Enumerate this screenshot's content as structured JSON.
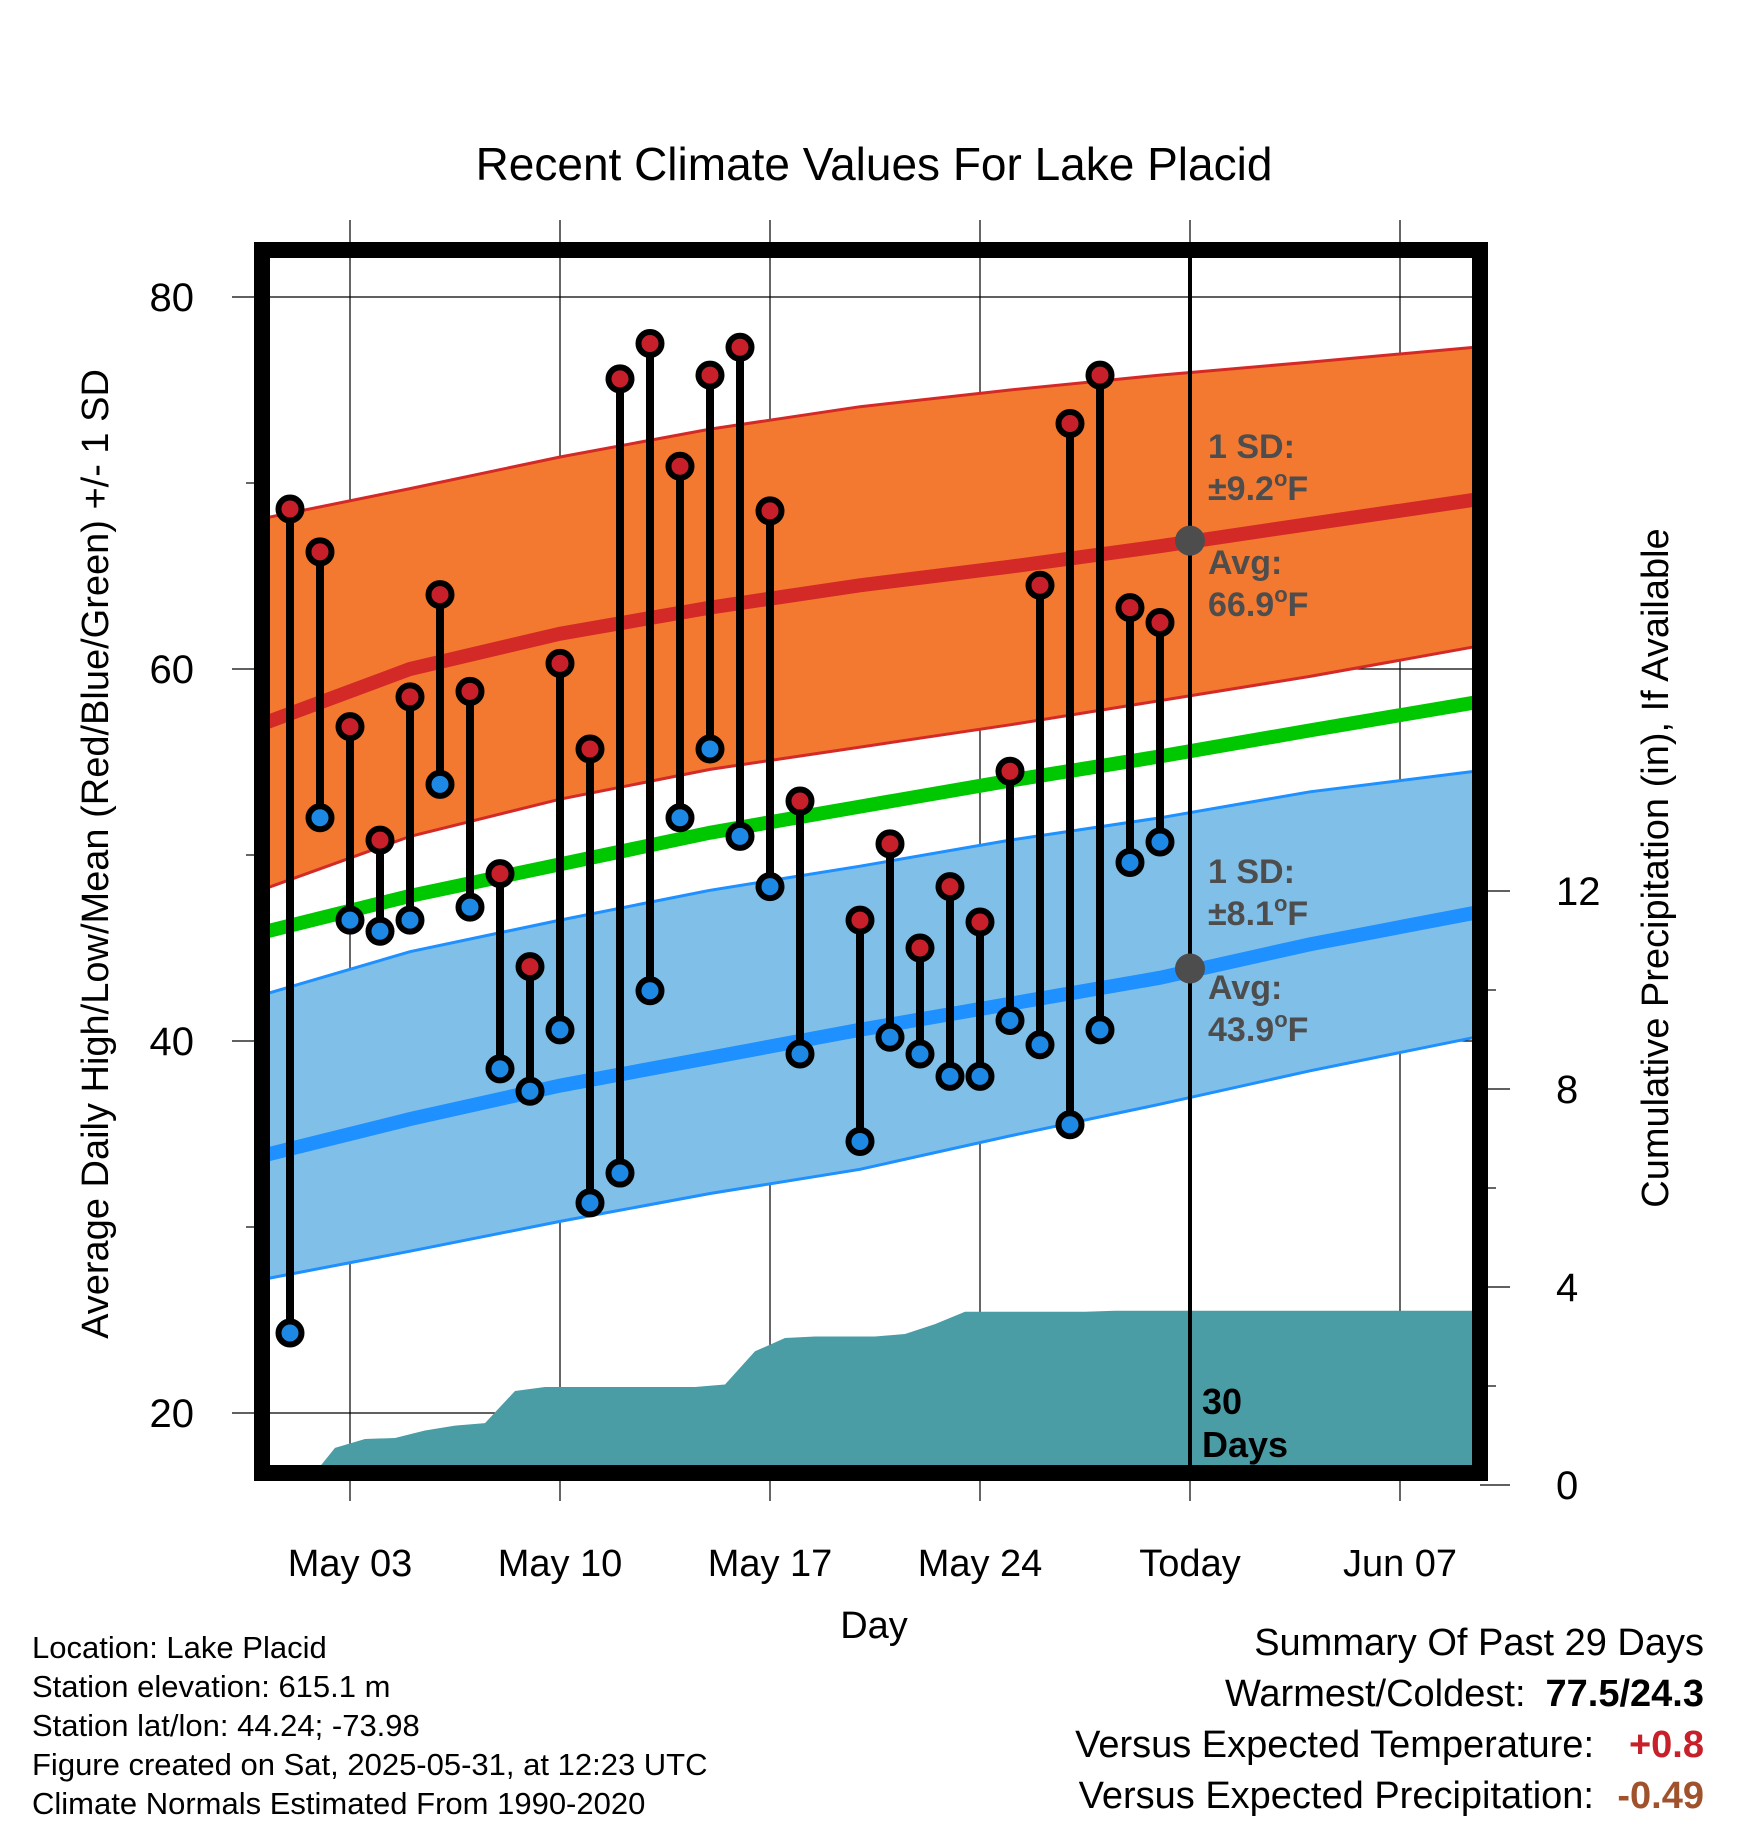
{
  "chart_data": {
    "type": "line",
    "title": "Recent Climate Values For Lake Placid",
    "xlabel": "Day",
    "ylabel_left": "Average Daily High/Low/Mean (Red/Blue/Green) +/- 1 SD",
    "ylabel_right": "Cumulative Precipitation (in), If Available",
    "x_tick_labels": [
      "May 03",
      "May 10",
      "May 17",
      "May 24",
      "Today",
      "Jun 07"
    ],
    "x_tick_days": [
      3,
      10,
      17,
      24,
      31,
      38
    ],
    "xlim_days": [
      -0.5,
      40.5
    ],
    "ylim_left": [
      16.7,
      83.3
    ],
    "y_ticks_left": [
      20,
      40,
      60,
      80
    ],
    "ylim_right": [
      0,
      28.6
    ],
    "y_ticks_right": [
      0,
      4,
      8,
      12
    ],
    "today_day": 31,
    "today_label": [
      "30",
      "Days"
    ],
    "daily_observations": {
      "days": [
        1,
        2,
        3,
        4,
        5,
        6,
        7,
        8,
        9,
        10,
        11,
        12,
        13,
        14,
        15,
        16,
        17,
        18,
        20,
        21,
        22,
        23,
        24,
        25,
        26,
        27,
        28,
        29,
        30
      ],
      "high": [
        68.6,
        66.3,
        56.9,
        50.8,
        58.5,
        64.0,
        58.8,
        49.0,
        44.0,
        60.3,
        55.7,
        75.6,
        77.5,
        70.9,
        75.8,
        77.3,
        68.5,
        52.9,
        46.5,
        50.6,
        45.0,
        48.3,
        46.4,
        54.5,
        64.5,
        73.2,
        75.8,
        63.3,
        62.5
      ],
      "low": [
        24.3,
        52.0,
        46.5,
        45.9,
        46.5,
        53.8,
        47.2,
        38.5,
        37.3,
        40.6,
        31.3,
        32.9,
        42.7,
        52.0,
        55.7,
        51.0,
        48.3,
        39.3,
        34.6,
        40.2,
        39.3,
        38.1,
        38.1,
        41.1,
        39.8,
        35.5,
        40.6,
        49.6,
        50.7
      ]
    },
    "normals": {
      "days": [
        -0.5,
        5,
        10,
        15,
        20,
        25,
        30,
        35,
        40.5
      ],
      "avg_high": [
        56.7,
        60.0,
        61.9,
        63.3,
        64.5,
        65.5,
        66.6,
        67.8,
        69.1
      ],
      "avg_high_plus_1sd": [
        67.9,
        69.7,
        71.4,
        72.9,
        74.1,
        75.0,
        75.8,
        76.5,
        77.3
      ],
      "avg_high_minus_1sd": [
        47.8,
        51.0,
        53.0,
        54.6,
        55.8,
        57.0,
        58.3,
        59.6,
        61.2
      ],
      "avg_mean": [
        45.6,
        47.8,
        49.5,
        51.2,
        52.6,
        54.0,
        55.3,
        56.7,
        58.2
      ],
      "avg_low": [
        33.6,
        35.8,
        37.6,
        39.1,
        40.6,
        42.0,
        43.4,
        45.2,
        46.9
      ],
      "avg_low_plus_1sd": [
        42.2,
        44.8,
        46.5,
        48.1,
        49.4,
        50.8,
        52.0,
        53.4,
        54.5
      ],
      "avg_low_minus_1sd": [
        27.0,
        28.7,
        30.3,
        31.8,
        33.1,
        34.9,
        36.6,
        38.4,
        40.2
      ]
    },
    "cumulative_precipitation": {
      "days": [
        -0.5,
        1.5,
        2.5,
        3.5,
        4.5,
        5.5,
        6.5,
        7.5,
        8.5,
        9.5,
        10.5,
        11.5,
        12.5,
        13.5,
        14.5,
        15.5,
        16.5,
        17.5,
        18.5,
        19.5,
        20.5,
        21.5,
        22.5,
        23.5,
        24.5,
        25.5,
        26.5,
        27.5,
        28.5,
        29.5,
        40.5
      ],
      "inches": [
        0,
        0,
        0.75,
        0.93,
        0.95,
        1.1,
        1.2,
        1.25,
        1.9,
        1.98,
        1.98,
        1.98,
        1.98,
        1.98,
        1.98,
        2.03,
        2.7,
        2.97,
        3.0,
        3.0,
        3.0,
        3.05,
        3.25,
        3.5,
        3.5,
        3.5,
        3.5,
        3.5,
        3.52,
        3.52,
        3.52
      ]
    },
    "annotations": {
      "high": {
        "sd_label": "1 SD:",
        "sd_value": "±9.2",
        "avg_label": "Avg:",
        "avg_value": "66.9",
        "avg": 66.9,
        "unit_o": "o",
        "unit_f": "F"
      },
      "low": {
        "sd_label": "1 SD:",
        "sd_value": "±8.1",
        "avg_label": "Avg:",
        "avg_value": "43.9",
        "avg": 43.9,
        "unit_o": "o",
        "unit_f": "F"
      }
    },
    "colors": {
      "high_band": "#f47930",
      "high_line": "#d42a27",
      "mean_line": "#00c800",
      "low_band": "#80c0e8",
      "low_line": "#1e90ff",
      "precip": "#4a9ca5",
      "high_marker": "#c8202a",
      "low_marker": "#1e88e5",
      "annotation_text": "#4d4d4d"
    }
  },
  "info": {
    "location": "Location: Lake Placid",
    "elevation": "Station elevation: 615.1 m",
    "latlon": "Station lat/lon: 44.24; -73.98",
    "created": "Figure created on Sat, 2025-05-31, at 12:23 UTC",
    "normals": "Climate Normals Estimated From 1990-2020"
  },
  "summary": {
    "title": "Summary Of Past 29 Days",
    "warm_cold_label": "Warmest/Coldest:",
    "warm_cold_value": "77.5/24.3",
    "temp_label": "Versus Expected Temperature:",
    "temp_value": "+0.8",
    "temp_color": "#c8202a",
    "precip_label": "Versus Expected Precipitation:",
    "precip_value": "-0.49",
    "precip_color": "#a0522d"
  }
}
